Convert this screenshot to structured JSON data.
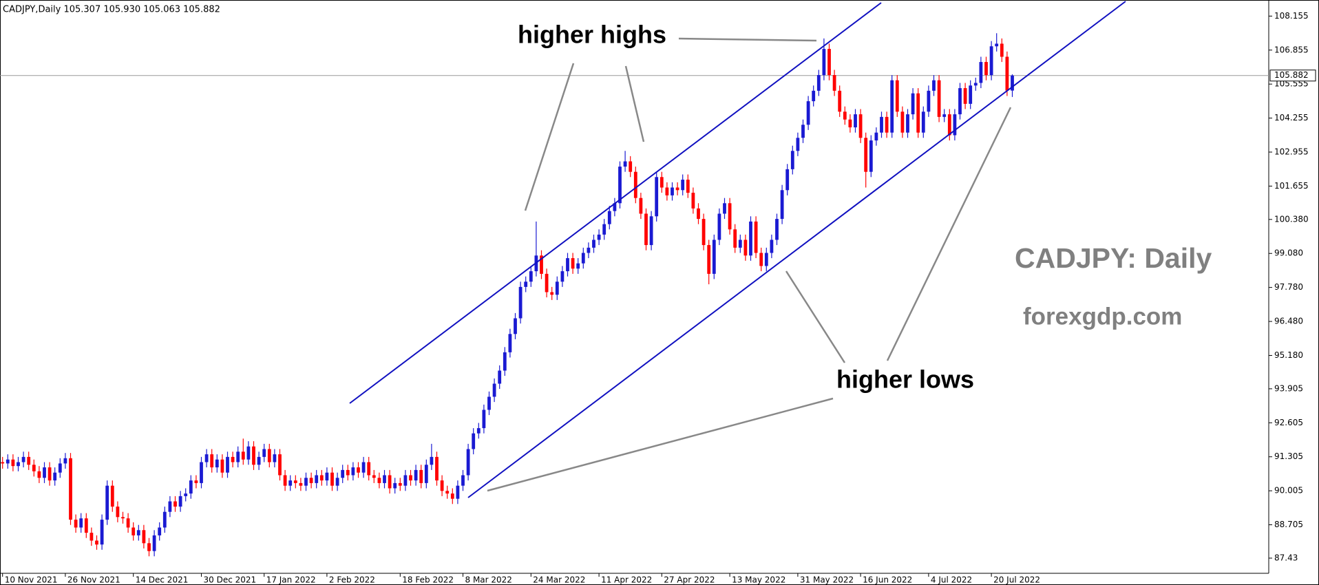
{
  "chart_data": {
    "type": "candlestick",
    "info": "CADJPY,Daily  105.307 105.930 105.063 105.882",
    "annotations": [
      "higher highs",
      "higher lows"
    ],
    "watermark": "CADJPY: Daily",
    "site": "forexgdp.com",
    "current_price": 105.882,
    "up_color": "#1a1ad2",
    "down_color": "#ff0000",
    "ylim": [
      86.85,
      108.77
    ],
    "yticks": [
      108.155,
      106.855,
      105.555,
      104.255,
      102.955,
      101.655,
      {
        "value": 100.38,
        "label": "100.380"
      },
      {
        "value": 99.08,
        "label": "99.080"
      },
      {
        "value": 97.78,
        "label": "97.780"
      },
      {
        "value": 96.48,
        "label": "96.480"
      },
      {
        "value": 95.18,
        "label": "95.180"
      },
      93.905,
      92.605,
      91.305,
      90.005,
      88.705,
      87.43
    ],
    "categories": [
      "10 Nov 2021",
      null,
      null,
      null,
      null,
      null,
      null,
      null,
      null,
      null,
      null,
      null,
      "26 Nov 2021",
      null,
      null,
      null,
      null,
      null,
      null,
      null,
      null,
      null,
      null,
      null,
      null,
      "14 Dec 2021",
      null,
      null,
      null,
      null,
      null,
      null,
      null,
      null,
      null,
      null,
      null,
      null,
      "30 Dec 2021",
      null,
      null,
      null,
      null,
      null,
      null,
      null,
      null,
      null,
      null,
      null,
      "17 Jan 2022",
      null,
      null,
      null,
      null,
      null,
      null,
      null,
      null,
      null,
      null,
      null,
      "2 Feb 2022",
      null,
      null,
      null,
      null,
      null,
      null,
      null,
      null,
      null,
      null,
      null,
      null,
      null,
      "18 Feb 2022",
      null,
      null,
      null,
      null,
      null,
      null,
      null,
      null,
      null,
      null,
      null,
      "8 Mar 2022",
      null,
      null,
      null,
      null,
      null,
      null,
      null,
      null,
      null,
      null,
      null,
      null,
      "24 Mar 2022",
      null,
      null,
      null,
      null,
      null,
      null,
      null,
      null,
      null,
      null,
      null,
      null,
      "11 Apr 2022",
      null,
      null,
      null,
      null,
      null,
      null,
      null,
      null,
      null,
      null,
      null,
      "27 Apr 2022",
      null,
      null,
      null,
      null,
      null,
      null,
      null,
      null,
      null,
      null,
      null,
      null,
      "13 May 2022",
      null,
      null,
      null,
      null,
      null,
      null,
      null,
      null,
      null,
      null,
      null,
      null,
      "31 May 2022",
      null,
      null,
      null,
      null,
      null,
      null,
      null,
      null,
      null,
      null,
      null,
      "16 Jun 2022",
      null,
      null,
      null,
      null,
      null,
      null,
      null,
      null,
      null,
      null,
      null,
      null,
      "4 Jul 2022",
      null,
      null,
      null,
      null,
      null,
      null,
      null,
      null,
      null,
      null,
      null,
      "20 Jul 2022",
      null,
      null,
      null,
      null
    ],
    "open": [
      91.1,
      91.05,
      91.2,
      90.95,
      91.1,
      91.3,
      91.0,
      90.75,
      90.5,
      90.9,
      90.4,
      90.7,
      91.05,
      91.25,
      88.9,
      88.6,
      88.95,
      88.4,
      88.1,
      87.95,
      88.9,
      90.2,
      89.4,
      89.0,
      88.95,
      88.6,
      88.3,
      88.5,
      88.0,
      87.7,
      88.3,
      88.6,
      89.2,
      89.6,
      89.4,
      89.8,
      89.9,
      90.4,
      90.3,
      91.1,
      91.4,
      90.9,
      91.2,
      90.7,
      91.3,
      91.1,
      91.5,
      91.2,
      91.7,
      91.0,
      91.3,
      91.6,
      91.1,
      91.4,
      90.6,
      90.2,
      90.4,
      90.3,
      90.2,
      90.5,
      90.3,
      90.6,
      90.4,
      90.7,
      90.2,
      90.5,
      90.8,
      90.6,
      90.9,
      90.7,
      91.1,
      90.6,
      90.5,
      90.3,
      90.6,
      90.1,
      90.3,
      90.2,
      90.6,
      90.4,
      90.8,
      90.3,
      91.0,
      91.3,
      90.4,
      90.0,
      89.9,
      89.7,
      90.2,
      90.6,
      91.6,
      92.2,
      92.4,
      93.1,
      93.6,
      94.1,
      94.6,
      95.3,
      96.0,
      96.6,
      97.8,
      98.0,
      98.4,
      99.0,
      98.3,
      97.6,
      97.5,
      98.0,
      98.4,
      98.9,
      98.5,
      98.7,
      99.1,
      99.3,
      99.6,
      99.8,
      100.2,
      100.7,
      101.0,
      102.4,
      102.6,
      102.2,
      101.2,
      100.6,
      99.4,
      100.5,
      102.0,
      101.6,
      101.3,
      101.6,
      101.5,
      101.9,
      101.4,
      100.8,
      100.4,
      99.4,
      98.3,
      99.6,
      100.6,
      101.0,
      100.0,
      99.3,
      99.6,
      99.0,
      100.3,
      99.1,
      98.6,
      99.1,
      99.6,
      100.4,
      101.5,
      102.3,
      103.0,
      103.5,
      104.0,
      104.9,
      105.3,
      105.9,
      106.9,
      105.9,
      105.3,
      104.5,
      104.2,
      103.9,
      104.4,
      103.5,
      102.2,
      103.4,
      103.7,
      104.3,
      103.7,
      105.7,
      104.5,
      103.7,
      104.4,
      105.2,
      103.7,
      104.5,
      105.3,
      105.7,
      104.3,
      104.4,
      103.6,
      104.4,
      105.4,
      104.8,
      105.5,
      105.6,
      106.4,
      105.9,
      107.0,
      107.1,
      106.6,
      105.307
    ],
    "high": [
      91.3,
      91.4,
      91.4,
      91.3,
      91.5,
      91.5,
      91.2,
      90.95,
      91.1,
      91.1,
      90.9,
      91.25,
      91.45,
      91.45,
      89.1,
      89.15,
      89.15,
      88.6,
      88.3,
      89.1,
      90.4,
      90.4,
      89.6,
      89.2,
      89.15,
      88.8,
      88.7,
      88.7,
      88.2,
      88.5,
      88.8,
      89.4,
      89.8,
      89.8,
      90.0,
      90.1,
      90.6,
      90.6,
      91.3,
      91.6,
      91.6,
      91.4,
      91.4,
      91.5,
      91.5,
      91.7,
      92.0,
      91.9,
      91.9,
      91.5,
      91.8,
      91.8,
      91.6,
      91.6,
      90.8,
      90.6,
      90.6,
      90.5,
      90.7,
      90.7,
      90.8,
      90.8,
      90.9,
      90.9,
      90.7,
      91.0,
      91.0,
      91.1,
      91.1,
      91.3,
      91.3,
      90.8,
      90.7,
      90.8,
      90.8,
      90.5,
      90.5,
      90.8,
      90.8,
      91.0,
      91.0,
      91.2,
      91.8,
      91.5,
      90.6,
      90.2,
      90.1,
      90.4,
      90.8,
      91.8,
      92.4,
      92.6,
      93.3,
      93.8,
      94.3,
      94.8,
      95.5,
      96.2,
      96.8,
      98.0,
      98.2,
      98.6,
      100.3,
      99.2,
      98.5,
      97.8,
      98.2,
      98.6,
      99.1,
      99.1,
      98.9,
      99.3,
      99.5,
      99.8,
      100.0,
      100.4,
      100.9,
      101.2,
      102.6,
      103.0,
      102.8,
      102.4,
      101.4,
      100.8,
      100.7,
      102.2,
      102.2,
      101.8,
      101.8,
      101.8,
      102.1,
      102.1,
      101.6,
      101.0,
      100.6,
      99.6,
      99.8,
      100.8,
      101.2,
      101.2,
      100.2,
      99.8,
      99.8,
      100.5,
      100.5,
      99.3,
      99.3,
      99.8,
      100.6,
      101.7,
      102.5,
      103.2,
      103.7,
      104.2,
      105.1,
      105.5,
      106.1,
      107.3,
      107.1,
      106.1,
      105.5,
      104.7,
      104.4,
      104.6,
      104.6,
      103.7,
      103.6,
      103.9,
      104.5,
      104.5,
      105.9,
      105.9,
      104.7,
      104.6,
      105.4,
      105.4,
      104.7,
      105.5,
      105.9,
      105.9,
      104.6,
      104.6,
      104.6,
      105.6,
      105.6,
      105.7,
      105.8,
      106.6,
      106.6,
      107.2,
      107.5,
      107.3,
      106.8,
      105.93
    ],
    "low": [
      90.85,
      90.85,
      90.75,
      90.75,
      90.9,
      90.8,
      90.55,
      90.3,
      90.3,
      90.2,
      90.2,
      90.5,
      90.85,
      88.7,
      88.4,
      88.4,
      88.2,
      87.9,
      87.75,
      87.75,
      88.7,
      89.2,
      88.8,
      88.75,
      88.4,
      88.1,
      88.1,
      87.8,
      87.5,
      87.5,
      88.1,
      88.4,
      89.0,
      89.2,
      89.2,
      89.6,
      89.7,
      90.1,
      90.1,
      90.9,
      90.7,
      90.7,
      90.5,
      90.5,
      90.9,
      90.9,
      91.0,
      91.0,
      90.8,
      90.8,
      91.1,
      90.9,
      90.9,
      90.4,
      90.0,
      90.0,
      90.1,
      90.0,
      90.0,
      90.1,
      90.1,
      90.2,
      90.2,
      90.0,
      90.0,
      90.3,
      90.4,
      90.4,
      90.5,
      90.5,
      90.4,
      90.3,
      90.1,
      90.1,
      89.9,
      89.9,
      90.0,
      90.0,
      90.2,
      90.2,
      90.1,
      90.1,
      90.8,
      90.2,
      89.8,
      89.7,
      89.5,
      89.5,
      90.0,
      90.4,
      91.4,
      92.0,
      92.2,
      92.9,
      93.4,
      93.9,
      94.4,
      95.1,
      95.8,
      96.4,
      97.6,
      97.8,
      98.2,
      98.1,
      97.4,
      97.3,
      97.3,
      97.8,
      98.2,
      98.3,
      98.3,
      98.5,
      98.9,
      99.1,
      99.4,
      99.6,
      100.0,
      100.5,
      100.8,
      102.2,
      102.0,
      101.0,
      100.4,
      99.2,
      99.2,
      100.3,
      101.4,
      101.1,
      101.1,
      101.3,
      101.3,
      101.2,
      100.6,
      100.2,
      99.2,
      97.9,
      98.1,
      99.4,
      100.4,
      99.8,
      99.1,
      99.1,
      98.8,
      98.8,
      98.9,
      98.4,
      98.4,
      98.9,
      99.4,
      100.2,
      101.3,
      102.1,
      102.8,
      103.3,
      103.8,
      104.7,
      105.1,
      105.7,
      105.7,
      105.1,
      104.3,
      104.0,
      103.7,
      103.7,
      103.3,
      101.6,
      102.0,
      103.2,
      103.5,
      103.5,
      103.5,
      104.3,
      103.5,
      103.5,
      104.2,
      103.5,
      103.5,
      104.3,
      105.1,
      104.1,
      104.1,
      103.4,
      103.4,
      104.2,
      104.6,
      104.6,
      105.3,
      105.4,
      105.7,
      105.7,
      106.8,
      106.4,
      105.1,
      105.063
    ],
    "close": [
      91.05,
      91.2,
      90.95,
      91.1,
      91.3,
      91.0,
      90.75,
      90.5,
      90.9,
      90.4,
      90.7,
      91.05,
      91.25,
      88.9,
      88.6,
      88.95,
      88.4,
      88.1,
      87.95,
      88.9,
      90.2,
      89.4,
      89.0,
      88.95,
      88.6,
      88.3,
      88.5,
      88.0,
      87.7,
      88.3,
      88.6,
      89.2,
      89.6,
      89.4,
      89.8,
      89.9,
      90.4,
      90.3,
      91.1,
      91.4,
      90.9,
      91.2,
      90.7,
      91.3,
      91.1,
      91.5,
      91.2,
      91.7,
      91.0,
      91.3,
      91.6,
      91.1,
      91.4,
      90.6,
      90.2,
      90.4,
      90.3,
      90.2,
      90.5,
      90.3,
      90.6,
      90.4,
      90.7,
      90.2,
      90.5,
      90.8,
      90.6,
      90.9,
      90.7,
      91.1,
      90.6,
      90.5,
      90.3,
      90.6,
      90.1,
      90.3,
      90.2,
      90.6,
      90.4,
      90.8,
      90.3,
      91.0,
      91.3,
      90.4,
      90.0,
      89.9,
      89.7,
      90.2,
      90.6,
      91.6,
      92.2,
      92.4,
      93.1,
      93.6,
      94.1,
      94.6,
      95.3,
      96.0,
      96.6,
      97.8,
      98.0,
      98.4,
      99.0,
      98.3,
      97.6,
      97.5,
      98.0,
      98.4,
      98.9,
      98.5,
      98.7,
      99.1,
      99.3,
      99.6,
      99.8,
      100.2,
      100.7,
      101.0,
      102.4,
      102.6,
      102.2,
      101.2,
      100.6,
      99.4,
      100.5,
      102.0,
      101.6,
      101.3,
      101.6,
      101.5,
      101.9,
      101.4,
      100.8,
      100.4,
      99.4,
      98.3,
      99.6,
      100.6,
      101.0,
      100.0,
      99.3,
      99.6,
      99.0,
      100.3,
      99.1,
      98.6,
      99.1,
      99.6,
      100.4,
      101.5,
      102.3,
      103.0,
      103.5,
      104.0,
      104.9,
      105.3,
      105.9,
      106.9,
      105.9,
      105.3,
      104.5,
      104.2,
      103.9,
      104.4,
      103.5,
      102.2,
      103.4,
      103.7,
      104.3,
      103.7,
      105.7,
      104.5,
      103.7,
      104.4,
      105.2,
      103.7,
      104.5,
      105.3,
      105.7,
      104.3,
      104.4,
      103.6,
      104.4,
      105.4,
      104.8,
      105.5,
      105.6,
      106.4,
      105.9,
      107.0,
      107.1,
      106.6,
      105.307,
      105.882
    ]
  }
}
